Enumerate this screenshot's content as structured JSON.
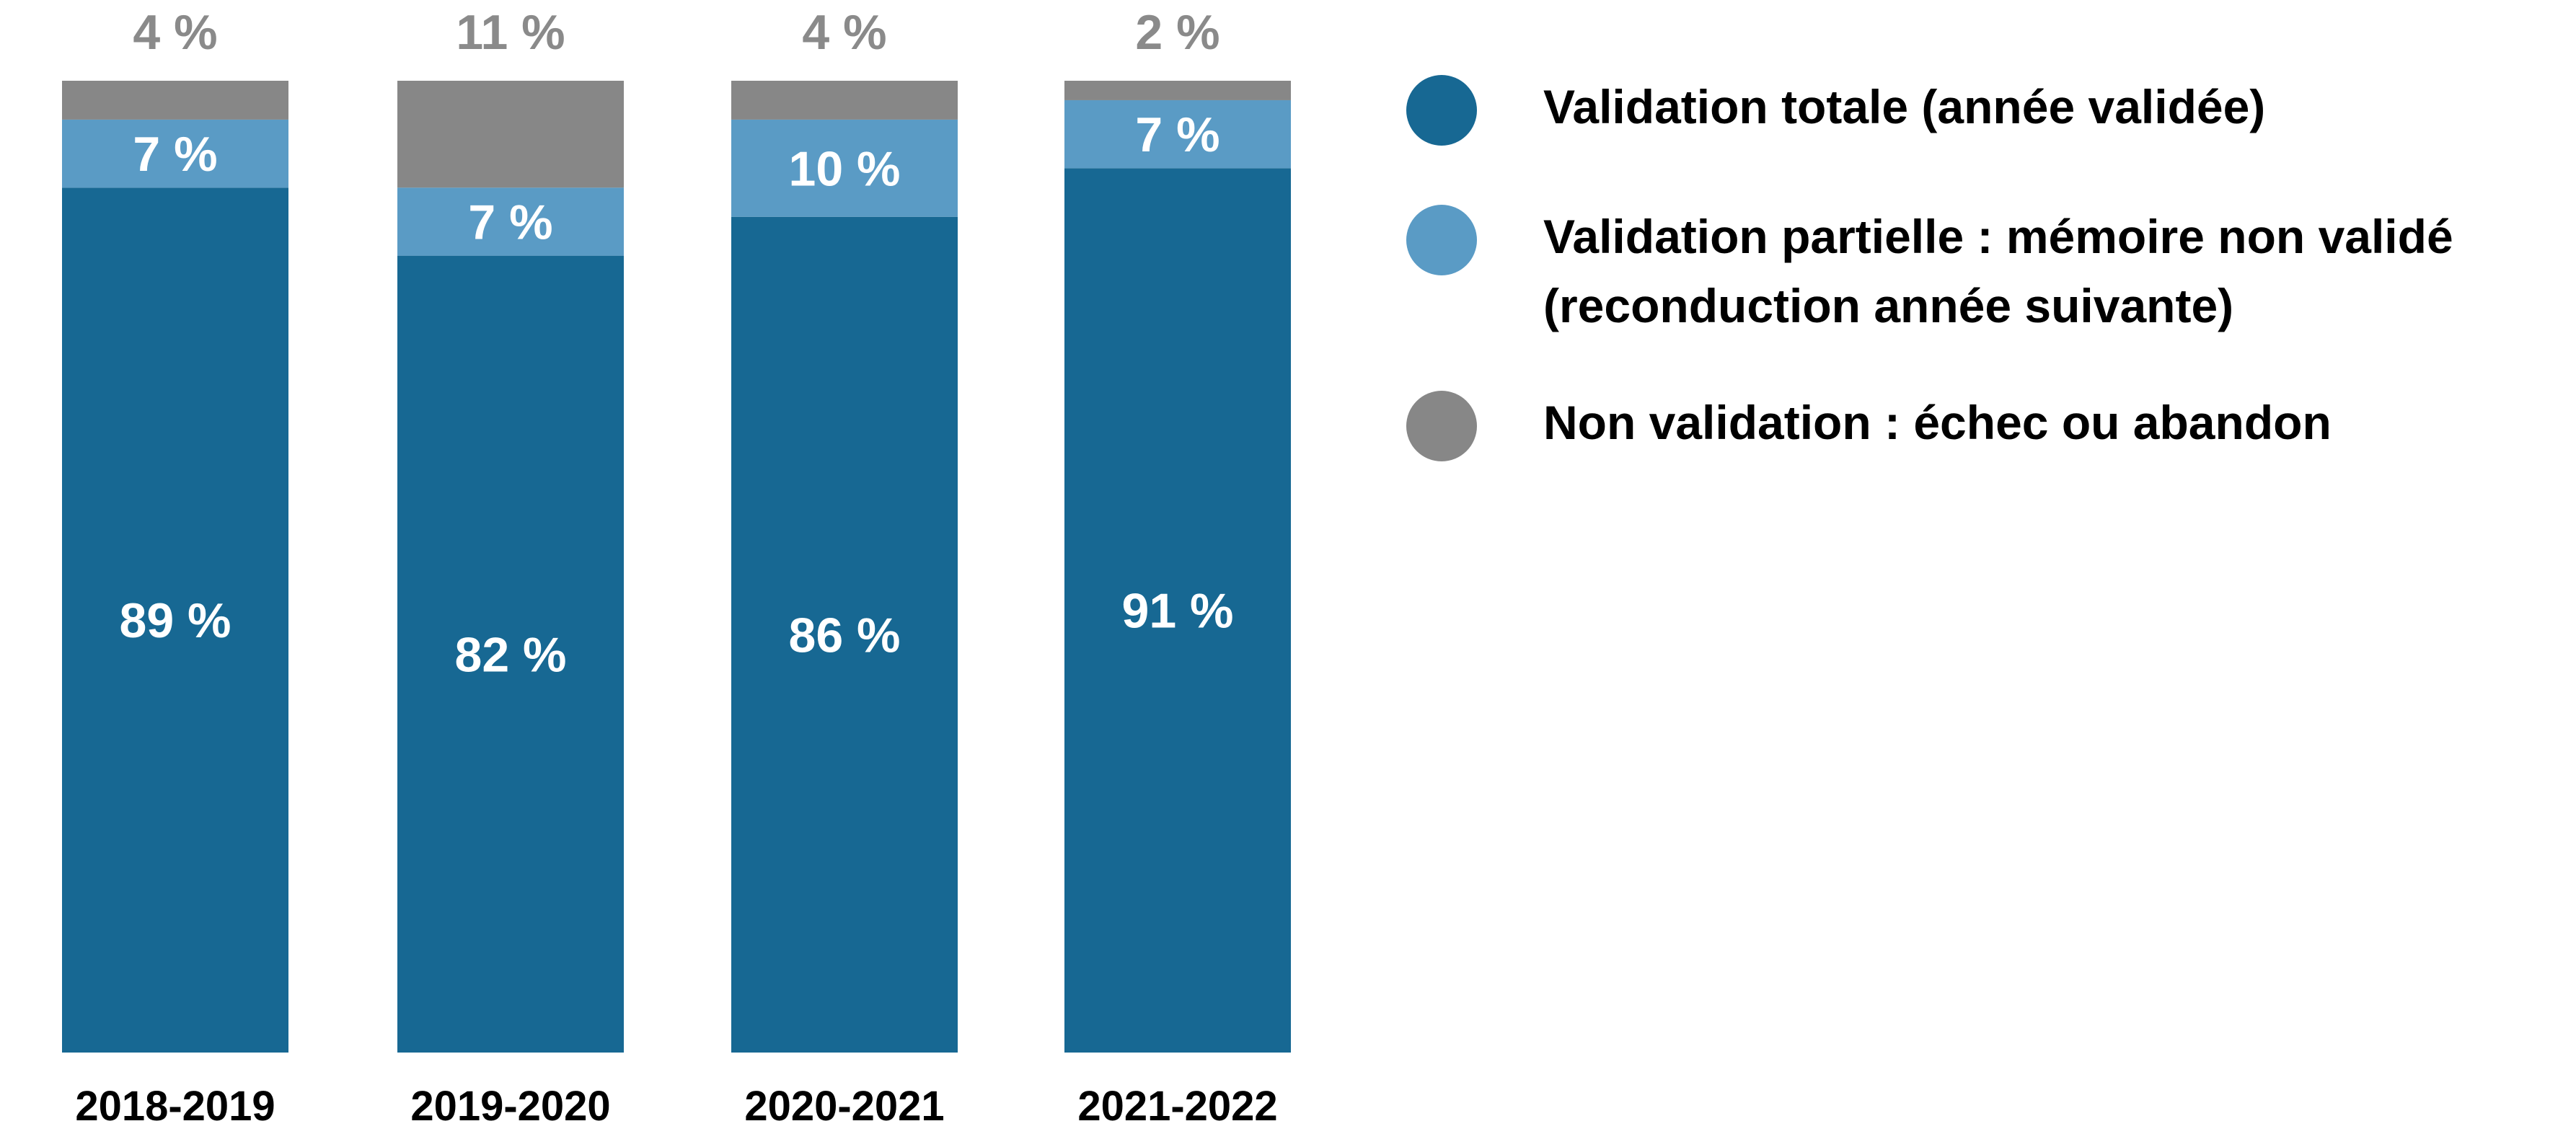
{
  "chart_data": {
    "type": "bar",
    "stacked": true,
    "categories": [
      "2018-2019",
      "2019-2020",
      "2020-2021",
      "2021-2022"
    ],
    "series": [
      {
        "name": "Validation totale (année validée)",
        "values": [
          89,
          82,
          86,
          91
        ],
        "labels": [
          "89 %",
          "82 %",
          "86 %",
          "91 %"
        ],
        "color": "#176893"
      },
      {
        "name": "Validation partielle : mémoire non validé (reconduction année suivante)",
        "values": [
          7,
          7,
          10,
          7
        ],
        "labels": [
          "7 %",
          "7 %",
          "10 %",
          "7 %"
        ],
        "color": "#5a9bc5"
      },
      {
        "name": "Non validation : échec ou abandon",
        "values": [
          4,
          11,
          4,
          2
        ],
        "labels": [
          "4 %",
          "11 %",
          "4 %",
          "2 %"
        ],
        "color": "#878787"
      }
    ],
    "ylim": [
      0,
      100
    ],
    "grid": false,
    "legend_position": "right"
  },
  "legend": {
    "items": [
      {
        "label_lines": [
          "Validation totale (année validée)"
        ],
        "color": "#176893",
        "icon": "circle"
      },
      {
        "label_lines": [
          "Validation partielle : mémoire non validé",
          "(reconduction année suivante)"
        ],
        "color": "#5a9bc5",
        "icon": "circle"
      },
      {
        "label_lines": [
          "Non validation : échec ou abandon"
        ],
        "color": "#878787",
        "icon": "circle"
      }
    ]
  },
  "colors": {
    "top_label": "#8a8a8a",
    "segment_label": "#ffffff",
    "category_label": "#000000"
  }
}
